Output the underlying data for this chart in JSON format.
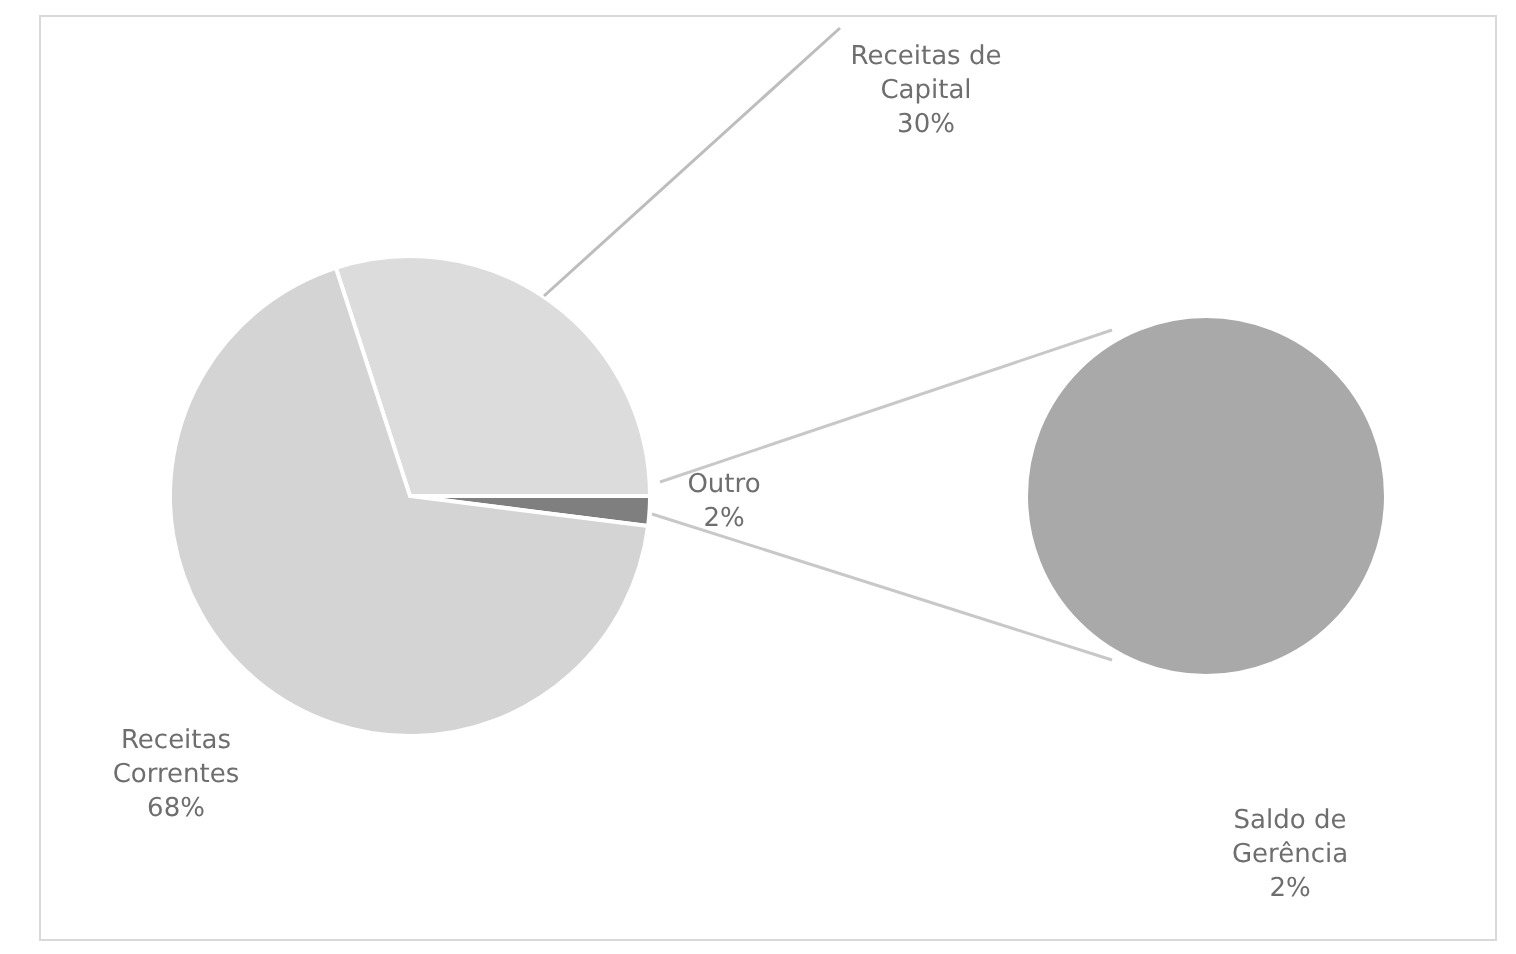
{
  "chart_data": [
    {
      "type": "pie",
      "categories": [
        "Receitas de Capital",
        "Outro",
        "Receitas Correntes"
      ],
      "values": [
        30,
        2,
        68
      ],
      "colors": [
        "#dcdcdc",
        "#7f7f7f",
        "#d4d4d4"
      ],
      "value_labels": [
        "30%",
        "2%",
        "68%"
      ]
    },
    {
      "type": "pie",
      "categories": [
        "Saldo de Gerência"
      ],
      "values": [
        2
      ],
      "colors": [
        "#a9a9a9"
      ],
      "value_labels": [
        "2%"
      ]
    }
  ]
}
